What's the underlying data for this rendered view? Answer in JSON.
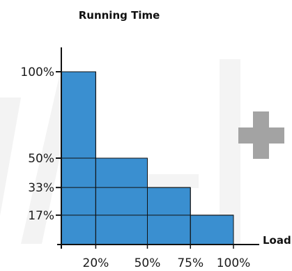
{
  "chart_data": {
    "type": "bar",
    "title": "Running Time",
    "xlabel": "Load",
    "ylabel": "",
    "x_ticks": [
      "20%",
      "50%",
      "75%",
      "100%"
    ],
    "y_ticks": [
      "100%",
      "50%",
      "33%",
      "17%"
    ],
    "bins": [
      {
        "x_start": 0,
        "x_end": 20,
        "value": 100
      },
      {
        "x_start": 20,
        "x_end": 50,
        "value": 50
      },
      {
        "x_start": 50,
        "x_end": 75,
        "value": 33
      },
      {
        "x_start": 75,
        "x_end": 100,
        "value": 17
      }
    ],
    "ylim": [
      0,
      120
    ],
    "xlim": [
      0,
      100
    ],
    "grid": false,
    "colors": {
      "bar_fill": "#3a8fd0",
      "bar_stroke": "#1a1a1a",
      "axis": "#111111",
      "background_shape": "#f2f2f2",
      "plus_icon": "#a3a3a3"
    }
  },
  "decor": {
    "plus_icon": "plus-icon"
  }
}
